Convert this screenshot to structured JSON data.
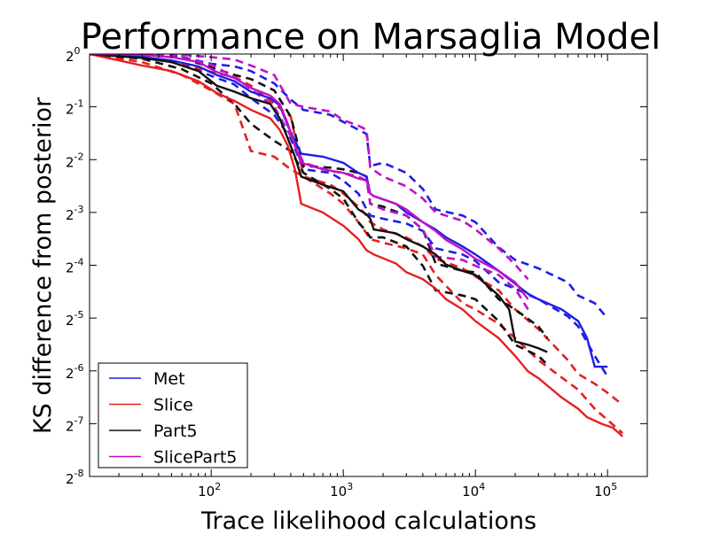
{
  "chart_data": {
    "type": "line",
    "title": "Performance on Marsaglia Model",
    "xlabel": "Trace likelihood calculations",
    "ylabel": "KS difference from posterior",
    "x_scale": "log10",
    "y_scale": "log2",
    "xlim": [
      12,
      200000
    ],
    "ylim": [
      0.00390625,
      1
    ],
    "x_ticks": [
      {
        "value": 100,
        "base": "10",
        "exp": "2"
      },
      {
        "value": 1000,
        "base": "10",
        "exp": "3"
      },
      {
        "value": 10000,
        "base": "10",
        "exp": "4"
      },
      {
        "value": 100000,
        "base": "10",
        "exp": "5"
      }
    ],
    "y_ticks": [
      {
        "value": 1,
        "base": "2",
        "exp": "0"
      },
      {
        "value": 0.5,
        "base": "2",
        "exp": "-1"
      },
      {
        "value": 0.25,
        "base": "2",
        "exp": "-2"
      },
      {
        "value": 0.125,
        "base": "2",
        "exp": "-3"
      },
      {
        "value": 0.0625,
        "base": "2",
        "exp": "-4"
      },
      {
        "value": 0.03125,
        "base": "2",
        "exp": "-5"
      },
      {
        "value": 0.015625,
        "base": "2",
        "exp": "-6"
      },
      {
        "value": 0.0078125,
        "base": "2",
        "exp": "-7"
      },
      {
        "value": 0.00390625,
        "base": "2",
        "exp": "-8"
      }
    ],
    "legend_position": "lower-left",
    "grid": false,
    "series": [
      {
        "name": "Met",
        "color": "#1f1fe6",
        "mean": {
          "x": [
            12,
            20,
            30,
            50,
            80,
            110,
            150,
            200,
            280,
            330,
            380,
            430,
            480,
            700,
            1000,
            1300,
            1500,
            1600,
            1700,
            2500,
            3000,
            4000,
            5000,
            6000,
            8000,
            10000,
            15000,
            20000,
            25000,
            30000,
            45000,
            60000,
            70000,
            80000,
            100000
          ],
          "y": [
            1.0,
            0.98,
            0.96,
            0.92,
            0.85,
            0.76,
            0.7,
            0.61,
            0.56,
            0.51,
            0.39,
            0.32,
            0.27,
            0.26,
            0.24,
            0.21,
            0.2,
            0.16,
            0.155,
            0.14,
            0.125,
            0.11,
            0.1,
            0.09,
            0.08,
            0.072,
            0.058,
            0.049,
            0.043,
            0.04,
            0.035,
            0.03,
            0.024,
            0.0165,
            0.0165
          ]
        },
        "upper": {
          "x": [
            12,
            30,
            60,
            100,
            150,
            200,
            300,
            400,
            500,
            800,
            1000,
            1300,
            1500,
            1600,
            2000,
            3000,
            4000,
            5000,
            8000,
            10000,
            15000,
            20000,
            30000,
            50000,
            60000,
            80000,
            100000
          ],
          "y": [
            1.0,
            0.99,
            0.96,
            0.88,
            0.85,
            0.8,
            0.68,
            0.55,
            0.48,
            0.45,
            0.41,
            0.37,
            0.35,
            0.23,
            0.24,
            0.21,
            0.17,
            0.13,
            0.12,
            0.11,
            0.079,
            0.067,
            0.06,
            0.05,
            0.042,
            0.038,
            0.031
          ]
        },
        "lower": {
          "x": [
            12,
            30,
            60,
            100,
            150,
            200,
            300,
            400,
            500,
            800,
            1000,
            1300,
            1500,
            1600,
            2000,
            3000,
            4000,
            5000,
            8000,
            10000,
            15000,
            20000,
            30000,
            50000,
            60000,
            80000,
            100000
          ],
          "y": [
            1.0,
            0.96,
            0.88,
            0.75,
            0.67,
            0.56,
            0.45,
            0.33,
            0.22,
            0.21,
            0.19,
            0.16,
            0.13,
            0.12,
            0.115,
            0.108,
            0.098,
            0.078,
            0.072,
            0.066,
            0.05,
            0.046,
            0.04,
            0.032,
            0.028,
            0.019,
            0.0145
          ]
        }
      },
      {
        "name": "Slice",
        "color": "#e62020",
        "mean": {
          "x": [
            12,
            20,
            30,
            50,
            80,
            110,
            150,
            200,
            280,
            330,
            380,
            430,
            480,
            700,
            1000,
            1300,
            1500,
            1600,
            1700,
            2500,
            3000,
            4000,
            5000,
            6000,
            8000,
            10000,
            15000,
            20000,
            25000,
            30000,
            45000,
            60000,
            70000,
            90000,
            110000,
            130000
          ],
          "y": [
            1.0,
            0.92,
            0.86,
            0.8,
            0.7,
            0.6,
            0.54,
            0.48,
            0.43,
            0.37,
            0.3,
            0.22,
            0.14,
            0.125,
            0.105,
            0.088,
            0.076,
            0.074,
            0.072,
            0.064,
            0.057,
            0.052,
            0.046,
            0.04,
            0.035,
            0.03,
            0.024,
            0.019,
            0.0155,
            0.0142,
            0.011,
            0.0095,
            0.0085,
            0.0078,
            0.0074,
            0.0066
          ]
        },
        "upper": {
          "x": [
            12,
            30,
            60,
            100,
            150,
            200,
            300,
            400,
            500,
            800,
            1000,
            1300,
            1500,
            1600,
            2000,
            3000,
            4000,
            5000,
            8000,
            10000,
            15000,
            20000,
            30000,
            50000,
            60000,
            80000,
            100000,
            130000
          ],
          "y": [
            1.0,
            0.96,
            0.88,
            0.79,
            0.74,
            0.66,
            0.52,
            0.44,
            0.2,
            0.18,
            0.16,
            0.135,
            0.12,
            0.11,
            0.1,
            0.09,
            0.08,
            0.068,
            0.06,
            0.054,
            0.045,
            0.035,
            0.027,
            0.018,
            0.015,
            0.0132,
            0.0117,
            0.01
          ]
        },
        "lower": {
          "x": [
            12,
            30,
            60,
            100,
            150,
            200,
            300,
            400,
            500,
            800,
            1000,
            1300,
            1500,
            1600,
            2000,
            3000,
            4000,
            5000,
            8000,
            10000,
            15000,
            20000,
            30000,
            50000,
            60000,
            80000,
            100000,
            130000
          ],
          "y": [
            1.0,
            0.9,
            0.76,
            0.62,
            0.52,
            0.28,
            0.26,
            0.22,
            0.2,
            0.16,
            0.14,
            0.11,
            0.095,
            0.088,
            0.084,
            0.078,
            0.072,
            0.055,
            0.038,
            0.035,
            0.029,
            0.024,
            0.018,
            0.0135,
            0.0122,
            0.0095,
            0.0082,
            0.0069
          ]
        }
      },
      {
        "name": "Part5",
        "color": "#111111",
        "mean": {
          "x": [
            12,
            20,
            30,
            50,
            80,
            110,
            150,
            200,
            280,
            330,
            380,
            430,
            480,
            700,
            1000,
            1300,
            1500,
            1600,
            1700,
            2500,
            3000,
            4000,
            5000,
            6000,
            8000,
            10000,
            15000,
            18000,
            20000,
            25000,
            30000,
            35000
          ],
          "y": [
            1.0,
            0.97,
            0.95,
            0.9,
            0.8,
            0.66,
            0.61,
            0.56,
            0.52,
            0.43,
            0.33,
            0.26,
            0.2,
            0.18,
            0.165,
            0.13,
            0.122,
            0.115,
            0.1,
            0.095,
            0.088,
            0.08,
            0.072,
            0.063,
            0.058,
            0.055,
            0.042,
            0.035,
            0.023,
            0.022,
            0.021,
            0.02
          ]
        },
        "upper": {
          "x": [
            12,
            30,
            60,
            100,
            150,
            200,
            300,
            400,
            500,
            800,
            1000,
            1300,
            1500,
            1600,
            2000,
            3000,
            4000,
            5000,
            8000,
            10000,
            15000,
            20000,
            30000,
            35000
          ],
          "y": [
            1.0,
            0.99,
            0.95,
            0.84,
            0.76,
            0.72,
            0.62,
            0.44,
            0.23,
            0.225,
            0.22,
            0.21,
            0.2,
            0.14,
            0.135,
            0.12,
            0.1,
            0.064,
            0.058,
            0.057,
            0.04,
            0.035,
            0.028,
            0.024
          ]
        },
        "lower": {
          "x": [
            12,
            30,
            60,
            100,
            150,
            200,
            300,
            400,
            500,
            800,
            1000,
            1300,
            1500,
            1600,
            2000,
            3000,
            4000,
            5000,
            8000,
            10000,
            15000,
            20000,
            30000,
            35000
          ],
          "y": [
            1.0,
            0.94,
            0.82,
            0.68,
            0.52,
            0.4,
            0.32,
            0.28,
            0.21,
            0.17,
            0.15,
            0.11,
            0.097,
            0.09,
            0.09,
            0.08,
            0.062,
            0.045,
            0.042,
            0.04,
            0.03,
            0.022,
            0.019,
            0.017
          ]
        }
      },
      {
        "name": "SlicePart5",
        "color": "#c011c8",
        "mean": {
          "x": [
            12,
            20,
            30,
            50,
            80,
            110,
            150,
            200,
            280,
            330,
            380,
            430,
            480,
            700,
            1000,
            1300,
            1500,
            1600,
            1700,
            2500,
            3000,
            4000,
            5000,
            6000,
            8000,
            10000,
            15000,
            20000,
            25000
          ],
          "y": [
            1.0,
            1.0,
            0.99,
            0.96,
            0.9,
            0.79,
            0.73,
            0.64,
            0.58,
            0.52,
            0.4,
            0.3,
            0.24,
            0.22,
            0.21,
            0.195,
            0.19,
            0.16,
            0.155,
            0.14,
            0.13,
            0.11,
            0.098,
            0.087,
            0.077,
            0.068,
            0.058,
            0.05,
            0.04
          ]
        },
        "upper": {
          "x": [
            12,
            30,
            60,
            100,
            150,
            200,
            300,
            400,
            500,
            800,
            1000,
            1300,
            1500,
            1600,
            2000,
            3000,
            4000,
            5000,
            8000,
            10000,
            15000,
            20000,
            25000
          ],
          "y": [
            1.0,
            1.0,
            0.99,
            0.96,
            0.93,
            0.86,
            0.76,
            0.52,
            0.5,
            0.47,
            0.42,
            0.39,
            0.37,
            0.225,
            0.2,
            0.176,
            0.15,
            0.125,
            0.112,
            0.1,
            0.078,
            0.063,
            0.052
          ]
        },
        "lower": {
          "x": [
            12,
            30,
            60,
            100,
            150,
            200,
            300,
            400,
            500,
            800,
            1000,
            1300,
            1500,
            1600,
            2000,
            3000,
            4000,
            5000,
            8000,
            10000,
            15000,
            20000,
            25000
          ],
          "y": [
            1.0,
            0.99,
            0.95,
            0.87,
            0.74,
            0.63,
            0.5,
            0.34,
            0.24,
            0.215,
            0.21,
            0.2,
            0.19,
            0.14,
            0.13,
            0.12,
            0.1,
            0.07,
            0.067,
            0.062,
            0.055,
            0.046,
            0.035
          ]
        }
      }
    ]
  }
}
